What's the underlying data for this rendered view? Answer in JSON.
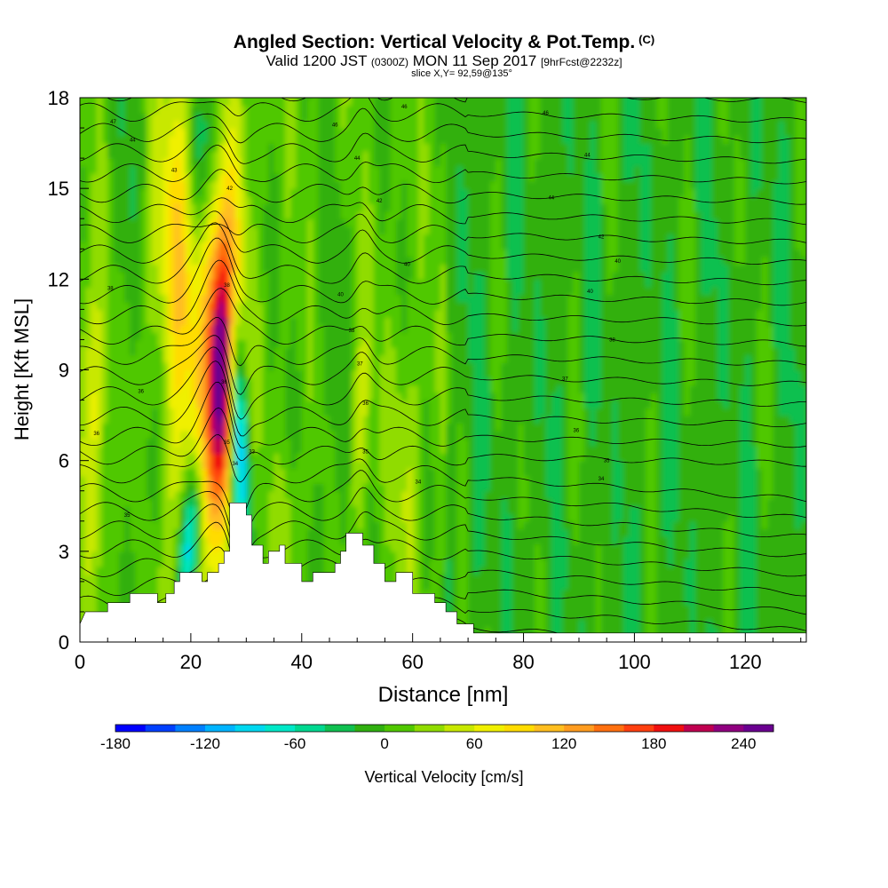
{
  "title": {
    "main": "Angled Section: Vertical Velocity & Pot.Temp.",
    "main_suffix": "(C)",
    "valid_prefix": "Valid 1200 JST",
    "valid_utc": "(0300Z)",
    "valid_date": "MON 11 Sep 2017",
    "forecast": "[9hrFcst@2232z]",
    "slice": "slice X,Y= 92,59@135°"
  },
  "chart_data": {
    "type": "heatmap",
    "xlabel": "Distance [nm]",
    "ylabel": "Height [Kft MSL]",
    "xlim": [
      0,
      131
    ],
    "ylim": [
      0,
      18
    ],
    "x_ticks": [
      0,
      20,
      40,
      60,
      80,
      100,
      120
    ],
    "y_ticks": [
      0,
      3,
      6,
      9,
      12,
      15,
      18
    ],
    "colorbar": {
      "label": "Vertical Velocity [cm/s]",
      "range": [
        -180,
        260
      ],
      "step": 20,
      "tick_values": [
        -180,
        -120,
        -60,
        0,
        60,
        120,
        180,
        240
      ],
      "colors": [
        "#0000ff",
        "#0040ff",
        "#0080ff",
        "#00b4ff",
        "#00d8f0",
        "#00e8c8",
        "#00d890",
        "#10c050",
        "#30b010",
        "#50c800",
        "#90dc00",
        "#c8e800",
        "#f0f000",
        "#ffdc00",
        "#ffbe20",
        "#ff9c20",
        "#ff7010",
        "#ff4010",
        "#f01010",
        "#c00050",
        "#900080",
        "#6a0090"
      ]
    },
    "terrain_kft": [
      [
        0,
        0.6
      ],
      [
        1,
        1.0
      ],
      [
        5,
        1.0
      ],
      [
        5,
        1.3
      ],
      [
        9,
        1.3
      ],
      [
        9,
        1.6
      ],
      [
        14,
        1.6
      ],
      [
        14,
        1.3
      ],
      [
        15.5,
        1.3
      ],
      [
        15.5,
        1.6
      ],
      [
        17,
        1.6
      ],
      [
        17,
        2.0
      ],
      [
        18,
        2.0
      ],
      [
        18,
        2.3
      ],
      [
        22,
        2.3
      ],
      [
        22,
        2.0
      ],
      [
        23,
        2.0
      ],
      [
        23,
        2.3
      ],
      [
        25,
        2.3
      ],
      [
        25,
        2.6
      ],
      [
        26,
        2.6
      ],
      [
        26,
        3.0
      ],
      [
        27,
        3.0
      ],
      [
        27,
        4.6
      ],
      [
        30,
        4.6
      ],
      [
        30,
        4.2
      ],
      [
        31,
        4.2
      ],
      [
        31,
        3.2
      ],
      [
        33,
        3.2
      ],
      [
        33,
        2.6
      ],
      [
        34,
        2.6
      ],
      [
        34,
        3.0
      ],
      [
        36,
        3.0
      ],
      [
        36,
        3.2
      ],
      [
        37,
        3.2
      ],
      [
        37,
        2.6
      ],
      [
        40,
        2.6
      ],
      [
        40,
        2.0
      ],
      [
        42,
        2.0
      ],
      [
        42,
        2.3
      ],
      [
        46,
        2.3
      ],
      [
        46,
        2.6
      ],
      [
        47,
        2.6
      ],
      [
        47,
        3.0
      ],
      [
        48,
        3.0
      ],
      [
        48,
        3.6
      ],
      [
        51,
        3.6
      ],
      [
        51,
        3.2
      ],
      [
        53,
        3.2
      ],
      [
        53,
        2.6
      ],
      [
        55,
        2.6
      ],
      [
        55,
        2.0
      ],
      [
        57,
        2.0
      ],
      [
        57,
        2.3
      ],
      [
        60,
        2.3
      ],
      [
        60,
        1.6
      ],
      [
        64,
        1.6
      ],
      [
        64,
        1.3
      ],
      [
        66,
        1.3
      ],
      [
        66,
        1.0
      ],
      [
        68,
        1.0
      ],
      [
        68,
        0.6
      ],
      [
        71,
        0.6
      ],
      [
        71,
        0.3
      ],
      [
        131,
        0.3
      ]
    ],
    "contour_labels": [
      {
        "x": 6.0,
        "y": 17.2,
        "text": "47"
      },
      {
        "x": 9.5,
        "y": 16.6,
        "text": "44"
      },
      {
        "x": 17.0,
        "y": 15.6,
        "text": "43"
      },
      {
        "x": 27.0,
        "y": 15.0,
        "text": "42"
      },
      {
        "x": 5.5,
        "y": 11.7,
        "text": "38"
      },
      {
        "x": 11.0,
        "y": 8.3,
        "text": "36"
      },
      {
        "x": 3.0,
        "y": 6.9,
        "text": "36"
      },
      {
        "x": 8.5,
        "y": 4.2,
        "text": "35"
      },
      {
        "x": 26.5,
        "y": 11.8,
        "text": "38"
      },
      {
        "x": 26.0,
        "y": 8.6,
        "text": "36"
      },
      {
        "x": 26.5,
        "y": 6.6,
        "text": "35"
      },
      {
        "x": 28.0,
        "y": 5.9,
        "text": "34"
      },
      {
        "x": 31.0,
        "y": 6.3,
        "text": "33"
      },
      {
        "x": 46.0,
        "y": 17.1,
        "text": "46"
      },
      {
        "x": 50.0,
        "y": 16.0,
        "text": "44"
      },
      {
        "x": 54.0,
        "y": 14.6,
        "text": "42"
      },
      {
        "x": 59.0,
        "y": 12.5,
        "text": "40"
      },
      {
        "x": 47.0,
        "y": 11.5,
        "text": "40"
      },
      {
        "x": 49.0,
        "y": 10.3,
        "text": "38"
      },
      {
        "x": 50.5,
        "y": 9.2,
        "text": "37"
      },
      {
        "x": 51.5,
        "y": 7.9,
        "text": "36"
      },
      {
        "x": 51.5,
        "y": 6.3,
        "text": "35"
      },
      {
        "x": 61.0,
        "y": 5.3,
        "text": "34"
      },
      {
        "x": 58.5,
        "y": 17.7,
        "text": "46"
      },
      {
        "x": 84.0,
        "y": 17.5,
        "text": "46"
      },
      {
        "x": 91.5,
        "y": 16.1,
        "text": "44"
      },
      {
        "x": 85.0,
        "y": 14.7,
        "text": "44"
      },
      {
        "x": 94.0,
        "y": 13.4,
        "text": "42"
      },
      {
        "x": 97.0,
        "y": 12.6,
        "text": "40"
      },
      {
        "x": 92.0,
        "y": 11.6,
        "text": "40"
      },
      {
        "x": 96.0,
        "y": 10.0,
        "text": "38"
      },
      {
        "x": 87.5,
        "y": 8.7,
        "text": "37"
      },
      {
        "x": 89.5,
        "y": 7.0,
        "text": "36"
      },
      {
        "x": 95.0,
        "y": 6.0,
        "text": "35"
      },
      {
        "x": 94.0,
        "y": 5.4,
        "text": "34"
      }
    ]
  }
}
